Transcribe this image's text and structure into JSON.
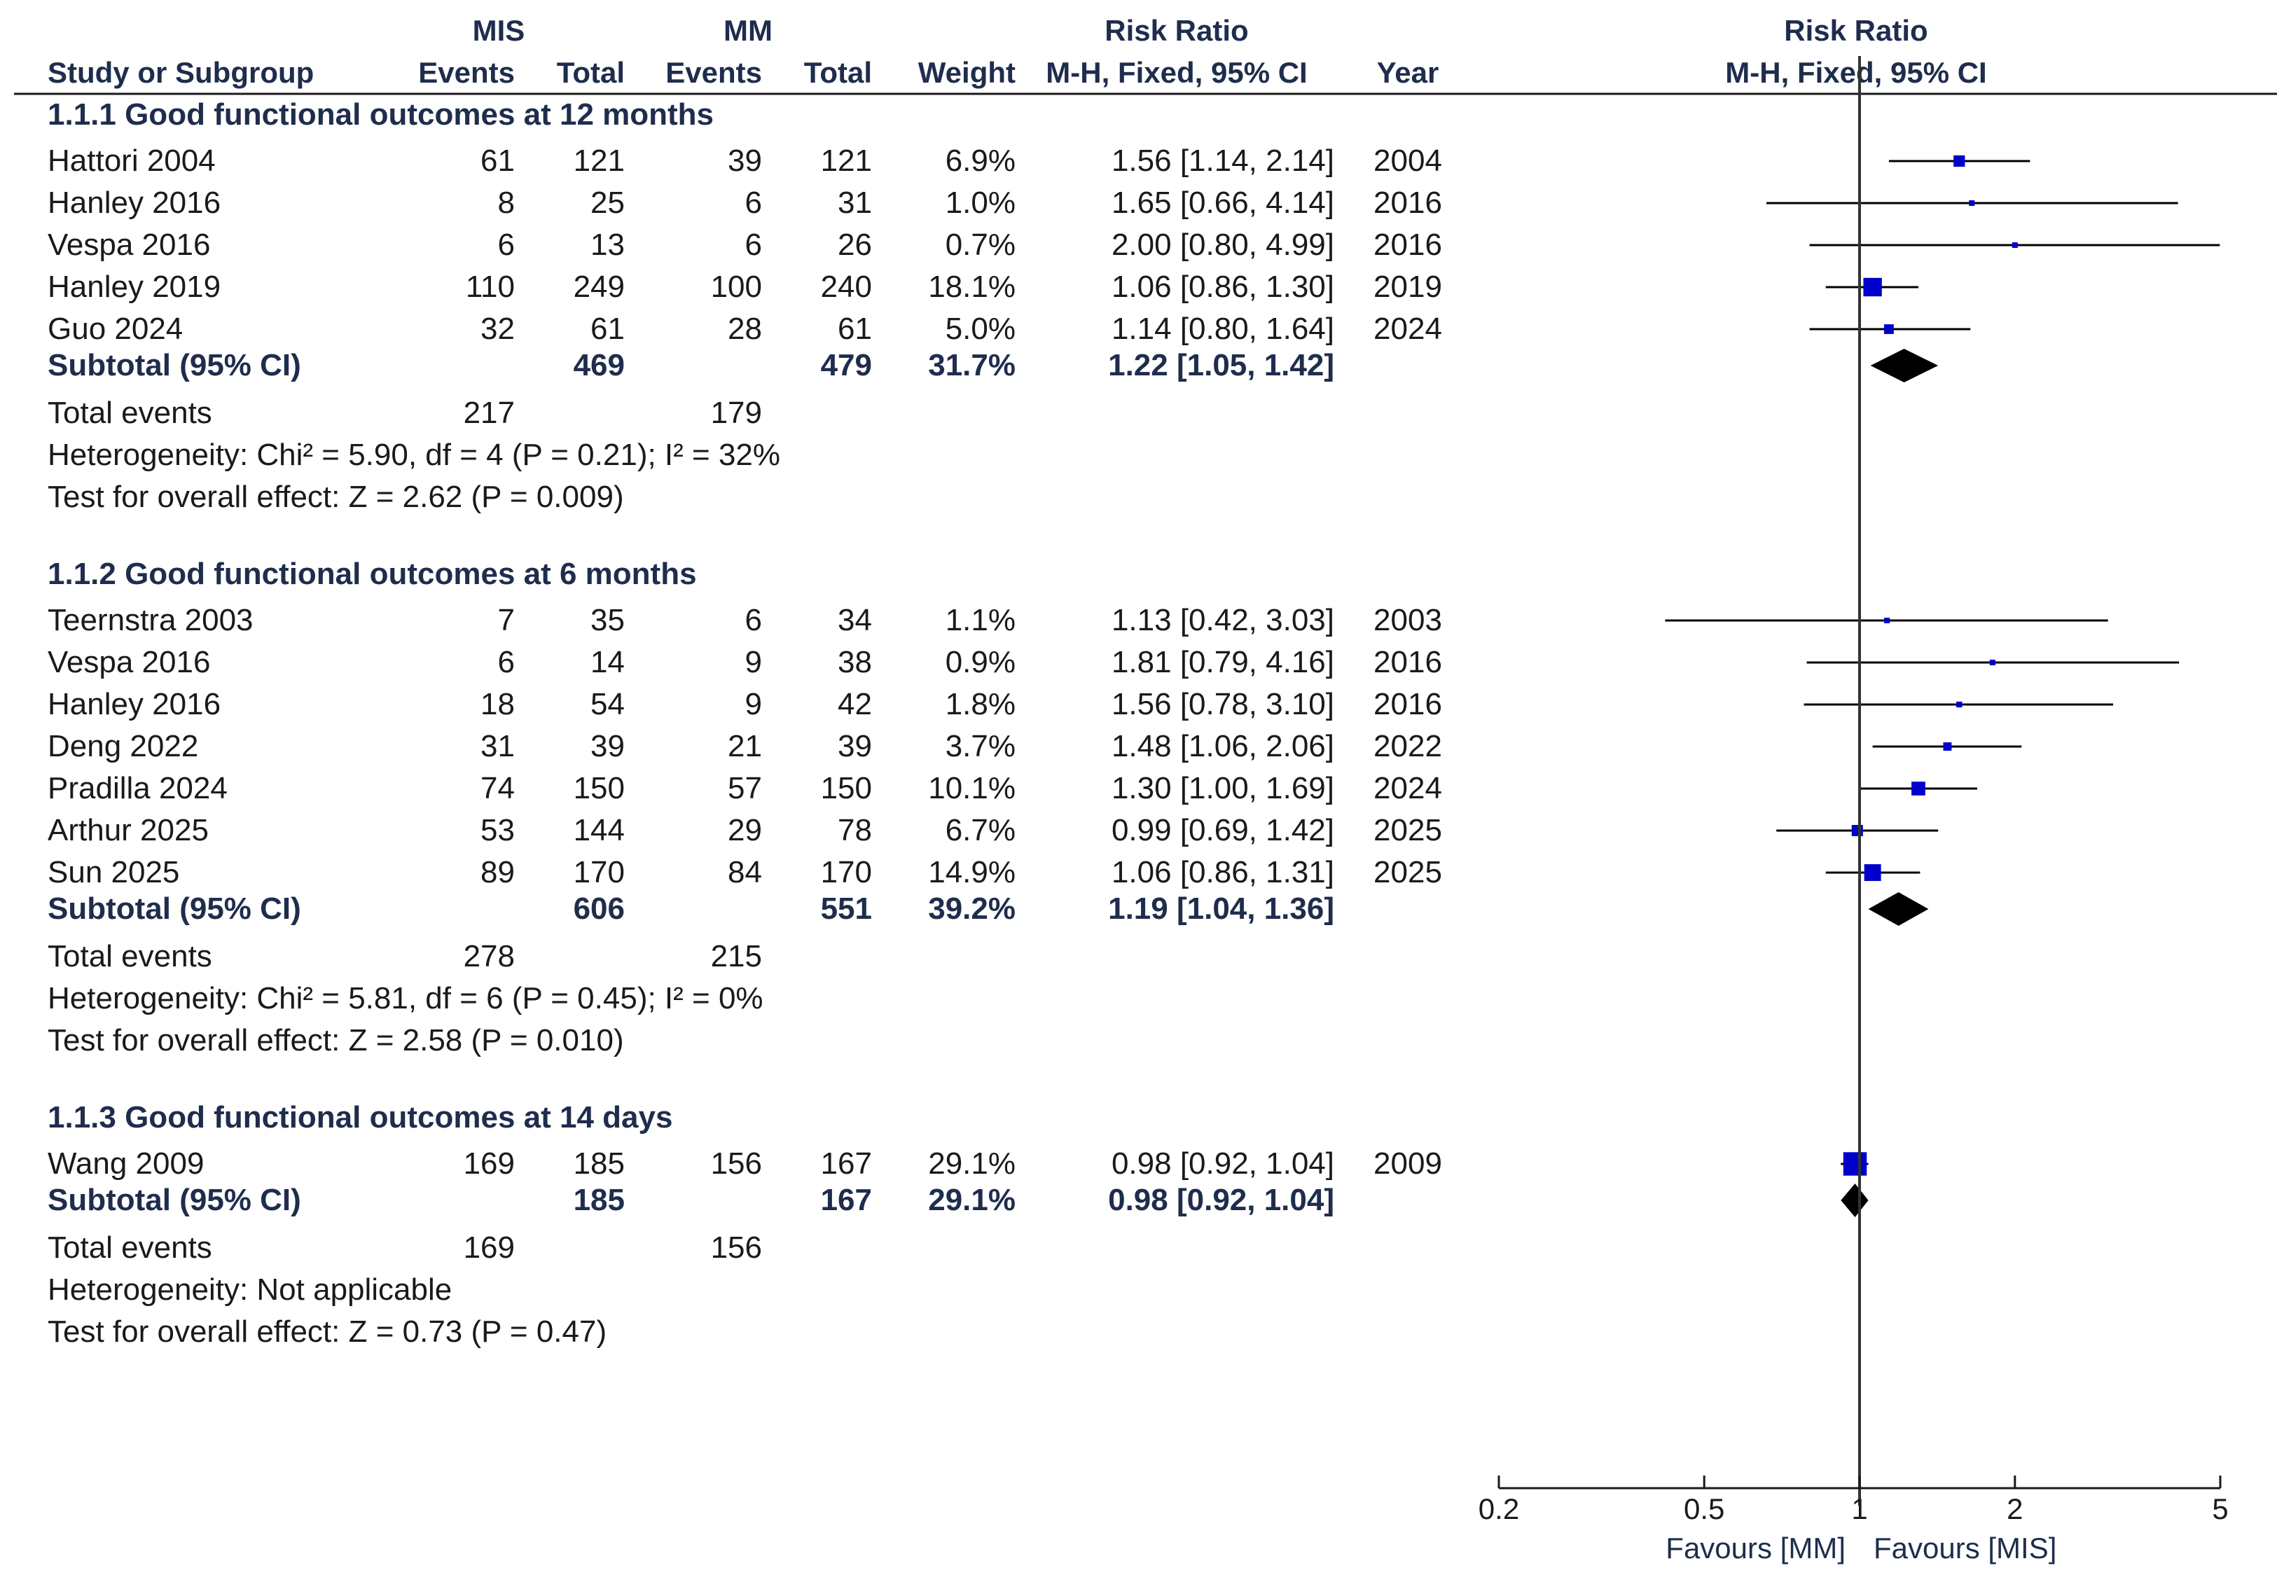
{
  "header": {
    "study_or_subgroup": "Study or Subgroup",
    "group1": "MIS",
    "group2": "MM",
    "events": "Events",
    "total": "Total",
    "weight": "Weight",
    "risk_ratio": "Risk Ratio",
    "method": "M-H, Fixed, 95% CI",
    "year": "Year",
    "plot_risk_ratio": "Risk Ratio",
    "plot_method": "M-H, Fixed, 95% CI"
  },
  "chart_data": {
    "type": "forest",
    "measure": "Risk Ratio",
    "method": "M-H, Fixed, 95% CI",
    "scale": "log",
    "xlim": [
      0.2,
      5
    ],
    "ticks": [
      "0.2",
      "0.5",
      "1",
      "2",
      "5"
    ],
    "favours_left": "Favours [MM]",
    "favours_right": "Favours [MIS]",
    "colors": {
      "study": "#0000cc",
      "line": "#000000",
      "diamond": "#000000"
    },
    "subgroups": [
      {
        "title": "1.1.1 Good functional outcomes at 12 months",
        "studies": [
          {
            "name": "Hattori 2004",
            "e1": "61",
            "t1": "121",
            "e2": "39",
            "t2": "121",
            "weight": "6.9%",
            "ci_text": "1.56 [1.14, 2.14]",
            "year": "2004",
            "rr": 1.56,
            "lo": 1.14,
            "hi": 2.14,
            "w": 6.9
          },
          {
            "name": "Hanley 2016",
            "e1": "8",
            "t1": "25",
            "e2": "6",
            "t2": "31",
            "weight": "1.0%",
            "ci_text": "1.65 [0.66, 4.14]",
            "year": "2016",
            "rr": 1.65,
            "lo": 0.66,
            "hi": 4.14,
            "w": 1.0
          },
          {
            "name": "Vespa 2016",
            "e1": "6",
            "t1": "13",
            "e2": "6",
            "t2": "26",
            "weight": "0.7%",
            "ci_text": "2.00 [0.80, 4.99]",
            "year": "2016",
            "rr": 2.0,
            "lo": 0.8,
            "hi": 4.99,
            "w": 0.7
          },
          {
            "name": "Hanley 2019",
            "e1": "110",
            "t1": "249",
            "e2": "100",
            "t2": "240",
            "weight": "18.1%",
            "ci_text": "1.06 [0.86, 1.30]",
            "year": "2019",
            "rr": 1.06,
            "lo": 0.86,
            "hi": 1.3,
            "w": 18.1
          },
          {
            "name": "Guo 2024",
            "e1": "32",
            "t1": "61",
            "e2": "28",
            "t2": "61",
            "weight": "5.0%",
            "ci_text": "1.14 [0.80, 1.64]",
            "year": "2024",
            "rr": 1.14,
            "lo": 0.8,
            "hi": 1.64,
            "w": 5.0
          }
        ],
        "subtotal": {
          "label": "Subtotal (95% CI)",
          "t1": "469",
          "t2": "479",
          "weight": "31.7%",
          "ci_text": "1.22 [1.05, 1.42]",
          "rr": 1.22,
          "lo": 1.05,
          "hi": 1.42
        },
        "total_events": {
          "label": "Total events",
          "e1": "217",
          "e2": "179"
        },
        "heterogeneity": "Heterogeneity: Chi² = 5.90, df = 4 (P = 0.21); I² = 32%",
        "overall_effect": "Test for overall effect: Z = 2.62 (P = 0.009)"
      },
      {
        "title": "1.1.2 Good functional outcomes at 6 months",
        "studies": [
          {
            "name": "Teernstra 2003",
            "e1": "7",
            "t1": "35",
            "e2": "6",
            "t2": "34",
            "weight": "1.1%",
            "ci_text": "1.13 [0.42, 3.03]",
            "year": "2003",
            "rr": 1.13,
            "lo": 0.42,
            "hi": 3.03,
            "w": 1.1
          },
          {
            "name": "Vespa 2016",
            "e1": "6",
            "t1": "14",
            "e2": "9",
            "t2": "38",
            "weight": "0.9%",
            "ci_text": "1.81 [0.79, 4.16]",
            "year": "2016",
            "rr": 1.81,
            "lo": 0.79,
            "hi": 4.16,
            "w": 0.9
          },
          {
            "name": "Hanley 2016",
            "e1": "18",
            "t1": "54",
            "e2": "9",
            "t2": "42",
            "weight": "1.8%",
            "ci_text": "1.56 [0.78, 3.10]",
            "year": "2016",
            "rr": 1.56,
            "lo": 0.78,
            "hi": 3.1,
            "w": 1.8
          },
          {
            "name": "Deng 2022",
            "e1": "31",
            "t1": "39",
            "e2": "21",
            "t2": "39",
            "weight": "3.7%",
            "ci_text": "1.48 [1.06, 2.06]",
            "year": "2022",
            "rr": 1.48,
            "lo": 1.06,
            "hi": 2.06,
            "w": 3.7
          },
          {
            "name": "Pradilla 2024",
            "e1": "74",
            "t1": "150",
            "e2": "57",
            "t2": "150",
            "weight": "10.1%",
            "ci_text": "1.30 [1.00, 1.69]",
            "year": "2024",
            "rr": 1.3,
            "lo": 1.0,
            "hi": 1.69,
            "w": 10.1
          },
          {
            "name": "Arthur 2025",
            "e1": "53",
            "t1": "144",
            "e2": "29",
            "t2": "78",
            "weight": "6.7%",
            "ci_text": "0.99 [0.69, 1.42]",
            "year": "2025",
            "rr": 0.99,
            "lo": 0.69,
            "hi": 1.42,
            "w": 6.7
          },
          {
            "name": "Sun 2025",
            "e1": "89",
            "t1": "170",
            "e2": "84",
            "t2": "170",
            "weight": "14.9%",
            "ci_text": "1.06 [0.86, 1.31]",
            "year": "2025",
            "rr": 1.06,
            "lo": 0.86,
            "hi": 1.31,
            "w": 14.9
          }
        ],
        "subtotal": {
          "label": "Subtotal (95% CI)",
          "t1": "606",
          "t2": "551",
          "weight": "39.2%",
          "ci_text": "1.19 [1.04, 1.36]",
          "rr": 1.19,
          "lo": 1.04,
          "hi": 1.36
        },
        "total_events": {
          "label": "Total events",
          "e1": "278",
          "e2": "215"
        },
        "heterogeneity": "Heterogeneity: Chi² = 5.81, df = 6 (P = 0.45); I² = 0%",
        "overall_effect": "Test for overall effect: Z = 2.58 (P = 0.010)"
      },
      {
        "title": "1.1.3 Good functional outcomes at 14 days",
        "studies": [
          {
            "name": "Wang 2009",
            "e1": "169",
            "t1": "185",
            "e2": "156",
            "t2": "167",
            "weight": "29.1%",
            "ci_text": "0.98 [0.92, 1.04]",
            "year": "2009",
            "rr": 0.98,
            "lo": 0.92,
            "hi": 1.04,
            "w": 29.1
          }
        ],
        "subtotal": {
          "label": "Subtotal (95% CI)",
          "t1": "185",
          "t2": "167",
          "weight": "29.1%",
          "ci_text": "0.98 [0.92, 1.04]",
          "rr": 0.98,
          "lo": 0.92,
          "hi": 1.04
        },
        "total_events": {
          "label": "Total events",
          "e1": "169",
          "e2": "156"
        },
        "heterogeneity": "Heterogeneity: Not applicable",
        "overall_effect": "Test for overall effect: Z = 0.73 (P = 0.47)"
      }
    ]
  }
}
